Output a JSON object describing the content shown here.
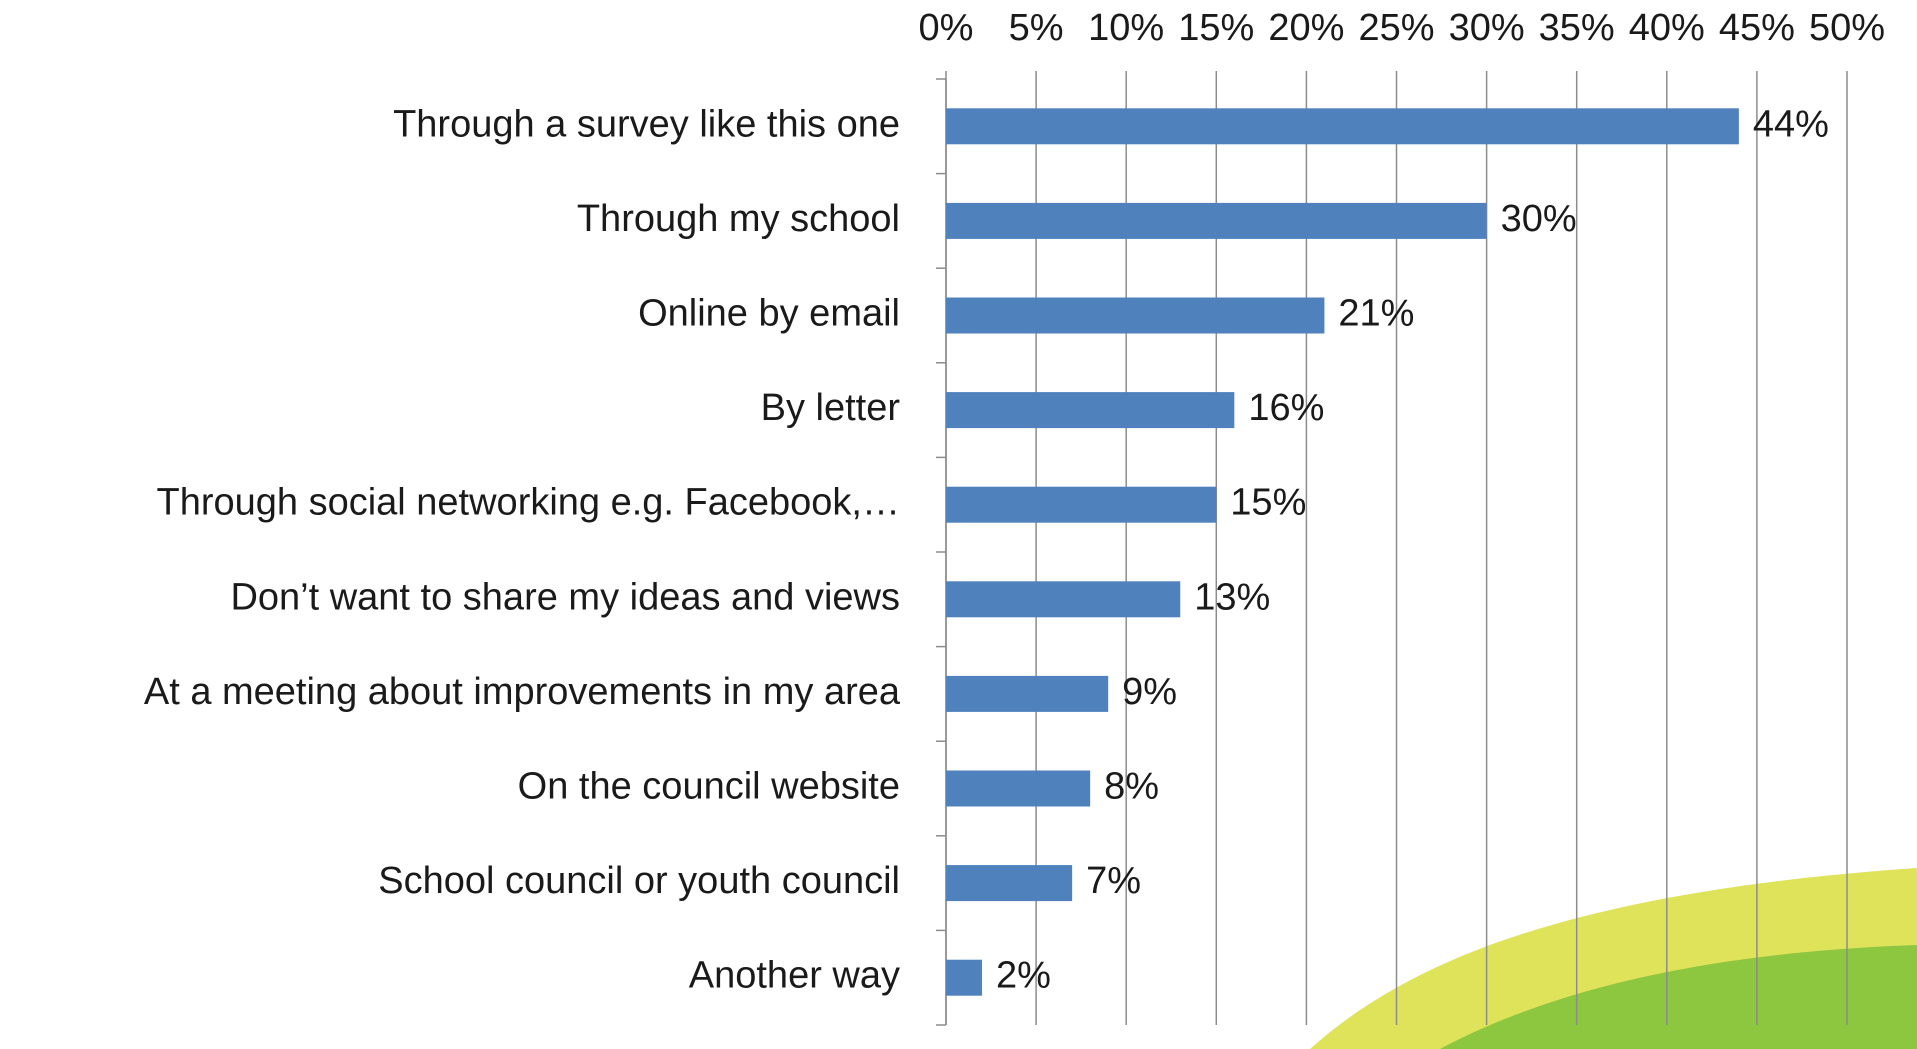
{
  "chart_data": {
    "type": "bar",
    "orientation": "horizontal",
    "categories": [
      "Through a survey like this one",
      "Through my school",
      "Online by email",
      "By letter",
      "Through social networking e.g. Facebook,…",
      "Don’t want to share my ideas and views",
      "At a meeting about improvements in my area",
      "On the council website",
      "School council or youth council",
      "Another way"
    ],
    "values": [
      44,
      30,
      21,
      16,
      15,
      13,
      9,
      8,
      7,
      2
    ],
    "value_labels": [
      "44%",
      "30%",
      "21%",
      "16%",
      "15%",
      "13%",
      "9%",
      "8%",
      "7%",
      "2%"
    ],
    "color": "#4f81bd",
    "xlim": [
      0,
      50
    ],
    "xticks": [
      {
        "value": 0,
        "label": "0%"
      },
      {
        "value": 5,
        "label": "5%"
      },
      {
        "value": 10,
        "label": "10%"
      },
      {
        "value": 15,
        "label": "15%"
      },
      {
        "value": 20,
        "label": "20%"
      },
      {
        "value": 25,
        "label": "25%"
      },
      {
        "value": 30,
        "label": "30%"
      },
      {
        "value": 35,
        "label": "35%"
      },
      {
        "value": 40,
        "label": "40%"
      },
      {
        "value": 45,
        "label": "45%"
      },
      {
        "value": 50,
        "label": "50%"
      }
    ],
    "grid": true
  }
}
